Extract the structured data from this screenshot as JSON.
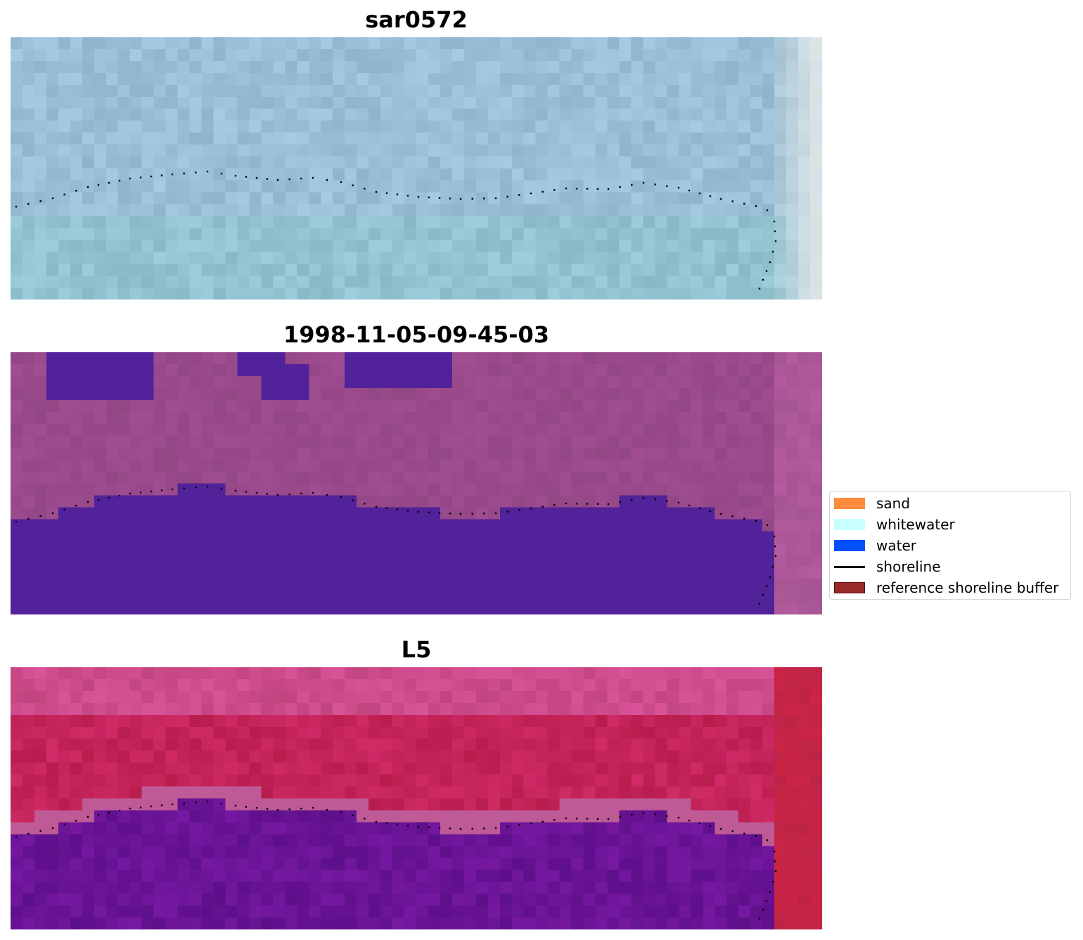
{
  "panels": [
    {
      "title": "sar0572"
    },
    {
      "title": "1998-11-05-09-45-03"
    },
    {
      "title": "L5"
    }
  ],
  "legend": {
    "items": [
      {
        "label": "sand",
        "color": "#ff8c3c",
        "kind": "patch"
      },
      {
        "label": "whitewater",
        "color": "#c8ffff",
        "kind": "patch"
      },
      {
        "label": "water",
        "color": "#0050ff",
        "kind": "patch"
      },
      {
        "label": "shoreline",
        "color": "#000000",
        "kind": "line"
      },
      {
        "label": "reference shoreline buffer",
        "color": "#9a2a2a",
        "kind": "patch"
      }
    ]
  },
  "colors": {
    "sar_base": "#9bbfd6",
    "classified_land": "#9a4a8c",
    "classified_water": "#52229a",
    "l5_land": "#c4245a",
    "l5_water": "#6a1496"
  }
}
